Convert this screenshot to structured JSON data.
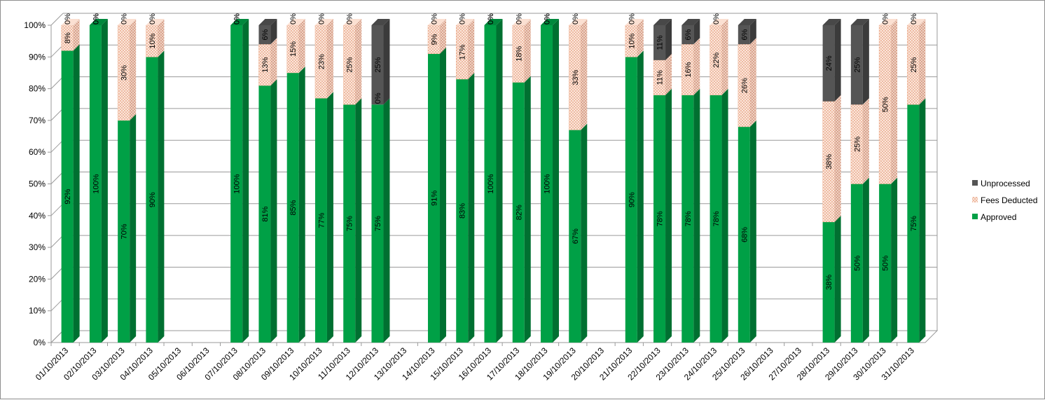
{
  "chart_data": {
    "type": "bar",
    "stacked": true,
    "percent_stacked": true,
    "three_d": true,
    "title": "",
    "xlabel": "",
    "ylabel": "",
    "ylim": [
      0,
      100
    ],
    "y_ticks": [
      "0%",
      "10%",
      "20%",
      "30%",
      "40%",
      "50%",
      "60%",
      "70%",
      "80%",
      "90%",
      "100%"
    ],
    "grid": true,
    "legend_position": "right",
    "categories": [
      "01/10/2013",
      "02/10/2013",
      "03/10/2013",
      "04/10/2013",
      "05/10/2013",
      "06/10/2013",
      "07/10/2013",
      "08/10/2013",
      "09/10/2013",
      "10/10/2013",
      "11/10/2013",
      "12/10/2013",
      "13/10/2013",
      "14/10/2013",
      "15/10/2013",
      "16/10/2013",
      "17/10/2013",
      "18/10/2013",
      "19/10/2013",
      "20/10/2013",
      "21/10/2013",
      "22/10/2013",
      "23/10/2013",
      "24/10/2013",
      "25/10/2013",
      "26/10/2013",
      "27/10/2013",
      "28/10/2013",
      "29/10/2013",
      "30/10/2013",
      "31/10/2013"
    ],
    "series": [
      {
        "name": "Approved",
        "color": "#00a046",
        "values": [
          92,
          100,
          70,
          90,
          null,
          null,
          100,
          81,
          85,
          77,
          75,
          75,
          null,
          91,
          83,
          100,
          82,
          100,
          67,
          null,
          90,
          78,
          78,
          78,
          68,
          null,
          null,
          38,
          50,
          50,
          75
        ],
        "labels": [
          "92%",
          "100%",
          "70%",
          "90%",
          "",
          "",
          "100%",
          "81%",
          "85%",
          "77%",
          "75%",
          "75%",
          "",
          "91%",
          "83%",
          "100%",
          "82%",
          "100%",
          "67%",
          "",
          "90%",
          "78%",
          "78%",
          "78%",
          "68%",
          "",
          "",
          "38%",
          "50%",
          "50%",
          "75%"
        ]
      },
      {
        "name": "Fees Deducted",
        "color": "#f7cdb5",
        "values": [
          8,
          0,
          30,
          10,
          null,
          null,
          0,
          13,
          15,
          23,
          25,
          0,
          null,
          9,
          17,
          0,
          18,
          0,
          33,
          null,
          10,
          11,
          16,
          22,
          26,
          null,
          null,
          38,
          25,
          50,
          25
        ],
        "labels": [
          "8%",
          "0%",
          "30%",
          "10%",
          "",
          "",
          "0%",
          "13%",
          "15%",
          "23%",
          "25%",
          "0%",
          "",
          "9%",
          "17%",
          "0%",
          "18%",
          "0%",
          "33%",
          "",
          "10%",
          "11%",
          "16%",
          "22%",
          "26%",
          "",
          "",
          "38%",
          "25%",
          "50%",
          "25%"
        ]
      },
      {
        "name": "Unprocessed",
        "color": "#555555",
        "values": [
          0,
          0,
          0,
          0,
          null,
          null,
          0,
          6,
          0,
          0,
          0,
          25,
          null,
          0,
          0,
          0,
          0,
          0,
          0,
          null,
          0,
          11,
          6,
          0,
          6,
          null,
          null,
          24,
          25,
          0,
          0
        ],
        "labels": [
          "0%",
          "0%",
          "0%",
          "0%",
          "",
          "",
          "0%",
          "6%",
          "0%",
          "0%",
          "0%",
          "25%",
          "",
          "0%",
          "0%",
          "0%",
          "0%",
          "0%",
          "0%",
          "",
          "0%",
          "11%",
          "6%",
          "0%",
          "6%",
          "",
          "",
          "24%",
          "25%",
          "0%",
          "0%"
        ]
      }
    ],
    "legend": [
      {
        "name": "Unprocessed",
        "color": "#555555"
      },
      {
        "name": "Fees Deducted",
        "color": "#f7cdb5"
      },
      {
        "name": "Approved",
        "color": "#00a046"
      }
    ]
  }
}
